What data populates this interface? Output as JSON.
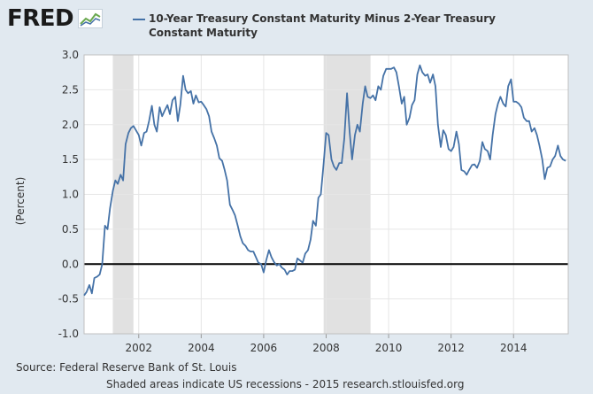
{
  "header": {
    "logo_text": "FRED",
    "legend_label": "10-Year Treasury Constant Maturity Minus 2-Year Treasury Constant Maturity"
  },
  "footer": {
    "source": "Source: Federal Reserve Bank of St. Louis",
    "note": "Shaded areas indicate US recessions - 2015 research.stlouisfed.org"
  },
  "colors": {
    "line": "#4572a7",
    "recession": "#e1e1e1",
    "grid": "#e6e6e6",
    "background": "#e1e9f0",
    "plot": "#ffffff"
  },
  "chart_data": {
    "type": "line",
    "title": "10-Year Treasury Constant Maturity Minus 2-Year Treasury Constant Maturity",
    "ylabel": "(Percent)",
    "xlabel": "",
    "xlim": [
      2000.25,
      2015.75
    ],
    "ylim": [
      -1.0,
      3.0
    ],
    "xticks": [
      2002,
      2004,
      2006,
      2008,
      2010,
      2012,
      2014
    ],
    "yticks": [
      -1.0,
      -0.5,
      0.0,
      0.5,
      1.0,
      1.5,
      2.0,
      2.5,
      3.0
    ],
    "ytick_labels": [
      "-1.0",
      "-0.5",
      "0.0",
      "0.5",
      "1.0",
      "1.5",
      "2.0",
      "2.5",
      "3.0"
    ],
    "recessions": [
      [
        2001.17,
        2001.83
      ],
      [
        2007.92,
        2009.42
      ]
    ],
    "grid": true,
    "series": [
      {
        "name": "10-Year Treasury Constant Maturity Minus 2-Year Treasury Constant Maturity",
        "points": [
          [
            2000.25,
            -0.45
          ],
          [
            2000.33,
            -0.4
          ],
          [
            2000.42,
            -0.3
          ],
          [
            2000.5,
            -0.42
          ],
          [
            2000.58,
            -0.2
          ],
          [
            2000.67,
            -0.18
          ],
          [
            2000.75,
            -0.15
          ],
          [
            2000.83,
            0.0
          ],
          [
            2000.92,
            0.55
          ],
          [
            2001.0,
            0.5
          ],
          [
            2001.08,
            0.8
          ],
          [
            2001.17,
            1.05
          ],
          [
            2001.25,
            1.2
          ],
          [
            2001.33,
            1.15
          ],
          [
            2001.42,
            1.28
          ],
          [
            2001.5,
            1.2
          ],
          [
            2001.58,
            1.72
          ],
          [
            2001.67,
            1.88
          ],
          [
            2001.75,
            1.95
          ],
          [
            2001.83,
            1.98
          ],
          [
            2002.0,
            1.85
          ],
          [
            2002.08,
            1.7
          ],
          [
            2002.17,
            1.88
          ],
          [
            2002.25,
            1.9
          ],
          [
            2002.33,
            2.05
          ],
          [
            2002.42,
            2.27
          ],
          [
            2002.5,
            2.0
          ],
          [
            2002.58,
            1.9
          ],
          [
            2002.67,
            2.25
          ],
          [
            2002.75,
            2.12
          ],
          [
            2002.83,
            2.2
          ],
          [
            2002.92,
            2.28
          ],
          [
            2003.0,
            2.15
          ],
          [
            2003.08,
            2.35
          ],
          [
            2003.17,
            2.4
          ],
          [
            2003.25,
            2.05
          ],
          [
            2003.33,
            2.28
          ],
          [
            2003.42,
            2.7
          ],
          [
            2003.5,
            2.5
          ],
          [
            2003.58,
            2.45
          ],
          [
            2003.67,
            2.48
          ],
          [
            2003.75,
            2.3
          ],
          [
            2003.83,
            2.42
          ],
          [
            2003.92,
            2.32
          ],
          [
            2004.0,
            2.33
          ],
          [
            2004.08,
            2.28
          ],
          [
            2004.17,
            2.22
          ],
          [
            2004.25,
            2.12
          ],
          [
            2004.33,
            1.9
          ],
          [
            2004.42,
            1.8
          ],
          [
            2004.5,
            1.7
          ],
          [
            2004.58,
            1.52
          ],
          [
            2004.67,
            1.48
          ],
          [
            2004.75,
            1.35
          ],
          [
            2004.83,
            1.2
          ],
          [
            2004.92,
            0.85
          ],
          [
            2005.0,
            0.78
          ],
          [
            2005.08,
            0.7
          ],
          [
            2005.17,
            0.55
          ],
          [
            2005.25,
            0.4
          ],
          [
            2005.33,
            0.3
          ],
          [
            2005.42,
            0.26
          ],
          [
            2005.5,
            0.2
          ],
          [
            2005.58,
            0.18
          ],
          [
            2005.67,
            0.18
          ],
          [
            2005.75,
            0.1
          ],
          [
            2005.83,
            0.02
          ],
          [
            2005.92,
            0.0
          ],
          [
            2006.0,
            -0.12
          ],
          [
            2006.08,
            0.05
          ],
          [
            2006.17,
            0.2
          ],
          [
            2006.25,
            0.1
          ],
          [
            2006.33,
            0.03
          ],
          [
            2006.42,
            -0.02
          ],
          [
            2006.5,
            0.0
          ],
          [
            2006.58,
            -0.05
          ],
          [
            2006.67,
            -0.08
          ],
          [
            2006.75,
            -0.15
          ],
          [
            2006.83,
            -0.1
          ],
          [
            2006.92,
            -0.1
          ],
          [
            2007.0,
            -0.08
          ],
          [
            2007.08,
            0.08
          ],
          [
            2007.17,
            0.05
          ],
          [
            2007.25,
            0.02
          ],
          [
            2007.33,
            0.15
          ],
          [
            2007.42,
            0.2
          ],
          [
            2007.5,
            0.35
          ],
          [
            2007.58,
            0.62
          ],
          [
            2007.67,
            0.55
          ],
          [
            2007.75,
            0.95
          ],
          [
            2007.83,
            1.0
          ],
          [
            2007.92,
            1.45
          ],
          [
            2008.0,
            1.88
          ],
          [
            2008.08,
            1.85
          ],
          [
            2008.17,
            1.5
          ],
          [
            2008.25,
            1.4
          ],
          [
            2008.33,
            1.35
          ],
          [
            2008.42,
            1.45
          ],
          [
            2008.5,
            1.45
          ],
          [
            2008.58,
            1.8
          ],
          [
            2008.67,
            2.45
          ],
          [
            2008.75,
            1.9
          ],
          [
            2008.83,
            1.5
          ],
          [
            2008.92,
            1.85
          ],
          [
            2009.0,
            2.0
          ],
          [
            2009.08,
            1.9
          ],
          [
            2009.17,
            2.3
          ],
          [
            2009.25,
            2.55
          ],
          [
            2009.33,
            2.4
          ],
          [
            2009.42,
            2.38
          ],
          [
            2009.5,
            2.42
          ],
          [
            2009.58,
            2.35
          ],
          [
            2009.67,
            2.55
          ],
          [
            2009.75,
            2.5
          ],
          [
            2009.83,
            2.7
          ],
          [
            2009.92,
            2.8
          ],
          [
            2010.0,
            2.8
          ],
          [
            2010.08,
            2.8
          ],
          [
            2010.17,
            2.82
          ],
          [
            2010.25,
            2.75
          ],
          [
            2010.33,
            2.55
          ],
          [
            2010.42,
            2.3
          ],
          [
            2010.5,
            2.4
          ],
          [
            2010.58,
            2.0
          ],
          [
            2010.67,
            2.1
          ],
          [
            2010.75,
            2.28
          ],
          [
            2010.83,
            2.35
          ],
          [
            2010.92,
            2.72
          ],
          [
            2011.0,
            2.85
          ],
          [
            2011.08,
            2.75
          ],
          [
            2011.17,
            2.7
          ],
          [
            2011.25,
            2.72
          ],
          [
            2011.33,
            2.6
          ],
          [
            2011.42,
            2.72
          ],
          [
            2011.5,
            2.55
          ],
          [
            2011.58,
            2.0
          ],
          [
            2011.67,
            1.68
          ],
          [
            2011.75,
            1.92
          ],
          [
            2011.83,
            1.85
          ],
          [
            2011.92,
            1.65
          ],
          [
            2012.0,
            1.62
          ],
          [
            2012.08,
            1.68
          ],
          [
            2012.17,
            1.9
          ],
          [
            2012.25,
            1.72
          ],
          [
            2012.33,
            1.35
          ],
          [
            2012.42,
            1.33
          ],
          [
            2012.5,
            1.28
          ],
          [
            2012.58,
            1.35
          ],
          [
            2012.67,
            1.42
          ],
          [
            2012.75,
            1.43
          ],
          [
            2012.83,
            1.38
          ],
          [
            2012.92,
            1.48
          ],
          [
            2013.0,
            1.75
          ],
          [
            2013.08,
            1.65
          ],
          [
            2013.17,
            1.62
          ],
          [
            2013.25,
            1.5
          ],
          [
            2013.33,
            1.85
          ],
          [
            2013.42,
            2.15
          ],
          [
            2013.5,
            2.3
          ],
          [
            2013.58,
            2.4
          ],
          [
            2013.67,
            2.3
          ],
          [
            2013.75,
            2.26
          ],
          [
            2013.83,
            2.55
          ],
          [
            2013.92,
            2.65
          ],
          [
            2014.0,
            2.33
          ],
          [
            2014.08,
            2.33
          ],
          [
            2014.17,
            2.3
          ],
          [
            2014.25,
            2.25
          ],
          [
            2014.33,
            2.1
          ],
          [
            2014.42,
            2.05
          ],
          [
            2014.5,
            2.05
          ],
          [
            2014.58,
            1.9
          ],
          [
            2014.67,
            1.95
          ],
          [
            2014.75,
            1.85
          ],
          [
            2014.83,
            1.7
          ],
          [
            2014.92,
            1.5
          ],
          [
            2015.0,
            1.22
          ],
          [
            2015.08,
            1.38
          ],
          [
            2015.17,
            1.4
          ],
          [
            2015.25,
            1.5
          ],
          [
            2015.33,
            1.55
          ],
          [
            2015.42,
            1.7
          ],
          [
            2015.5,
            1.55
          ],
          [
            2015.58,
            1.5
          ],
          [
            2015.67,
            1.48
          ]
        ]
      }
    ]
  }
}
